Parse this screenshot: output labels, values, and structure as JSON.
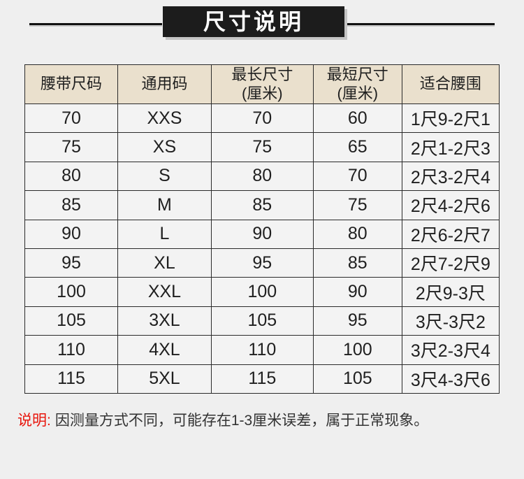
{
  "title": {
    "text": "尺寸说明",
    "banner_bg": "#1c1c1c",
    "banner_text_color": "#ffffff"
  },
  "table": {
    "headers": [
      "腰带尺码",
      "通用码",
      "最长尺寸\n(厘米)",
      "最短尺寸\n(厘米)",
      "适合腰围"
    ],
    "rows": [
      [
        "70",
        "XXS",
        "70",
        "60",
        "1尺9-2尺1"
      ],
      [
        "75",
        "XS",
        "75",
        "65",
        "2尺1-2尺3"
      ],
      [
        "80",
        "S",
        "80",
        "70",
        "2尺3-2尺4"
      ],
      [
        "85",
        "M",
        "85",
        "75",
        "2尺4-2尺6"
      ],
      [
        "90",
        "L",
        "90",
        "80",
        "2尺6-2尺7"
      ],
      [
        "95",
        "XL",
        "95",
        "85",
        "2尺7-2尺9"
      ],
      [
        "100",
        "XXL",
        "100",
        "90",
        "2尺9-3尺"
      ],
      [
        "105",
        "3XL",
        "105",
        "95",
        "3尺-3尺2"
      ],
      [
        "110",
        "4XL",
        "110",
        "100",
        "3尺2-3尺4"
      ],
      [
        "115",
        "5XL",
        "115",
        "105",
        "3尺4-3尺6"
      ]
    ],
    "header_bg": "#eae0cd",
    "cell_bg": "#f3f3f3",
    "border_color": "#2a2a2a"
  },
  "note": {
    "label": "说明:",
    "text": "因测量方式不同，可能存在1-3厘米误差，属于正常现象。",
    "label_color": "#e8150c"
  },
  "page": {
    "background": "#efefef"
  }
}
